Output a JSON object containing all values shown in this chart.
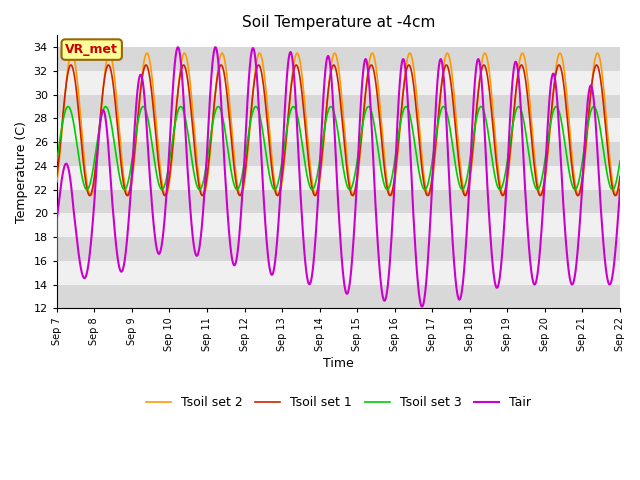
{
  "title": "Soil Temperature at -4cm",
  "xlabel": "Time",
  "ylabel": "Temperature (C)",
  "ylim": [
    12,
    35
  ],
  "yticks": [
    12,
    14,
    16,
    18,
    20,
    22,
    24,
    26,
    28,
    30,
    32,
    34
  ],
  "colors": {
    "Tair": "#cc00cc",
    "Tsoil1": "#cc2200",
    "Tsoil2": "#ff9900",
    "Tsoil3": "#00cc00"
  },
  "legend_labels": [
    "Tair",
    "Tsoil set 1",
    "Tsoil set 2",
    "Tsoil set 3"
  ],
  "annotation_text": "VR_met",
  "annotation_color": "#cc0000",
  "annotation_bg": "#ffff99",
  "band_colors": [
    "#d8d8d8",
    "#f0f0f0"
  ],
  "n_days": 15,
  "start_day": 7,
  "end_day": 22
}
